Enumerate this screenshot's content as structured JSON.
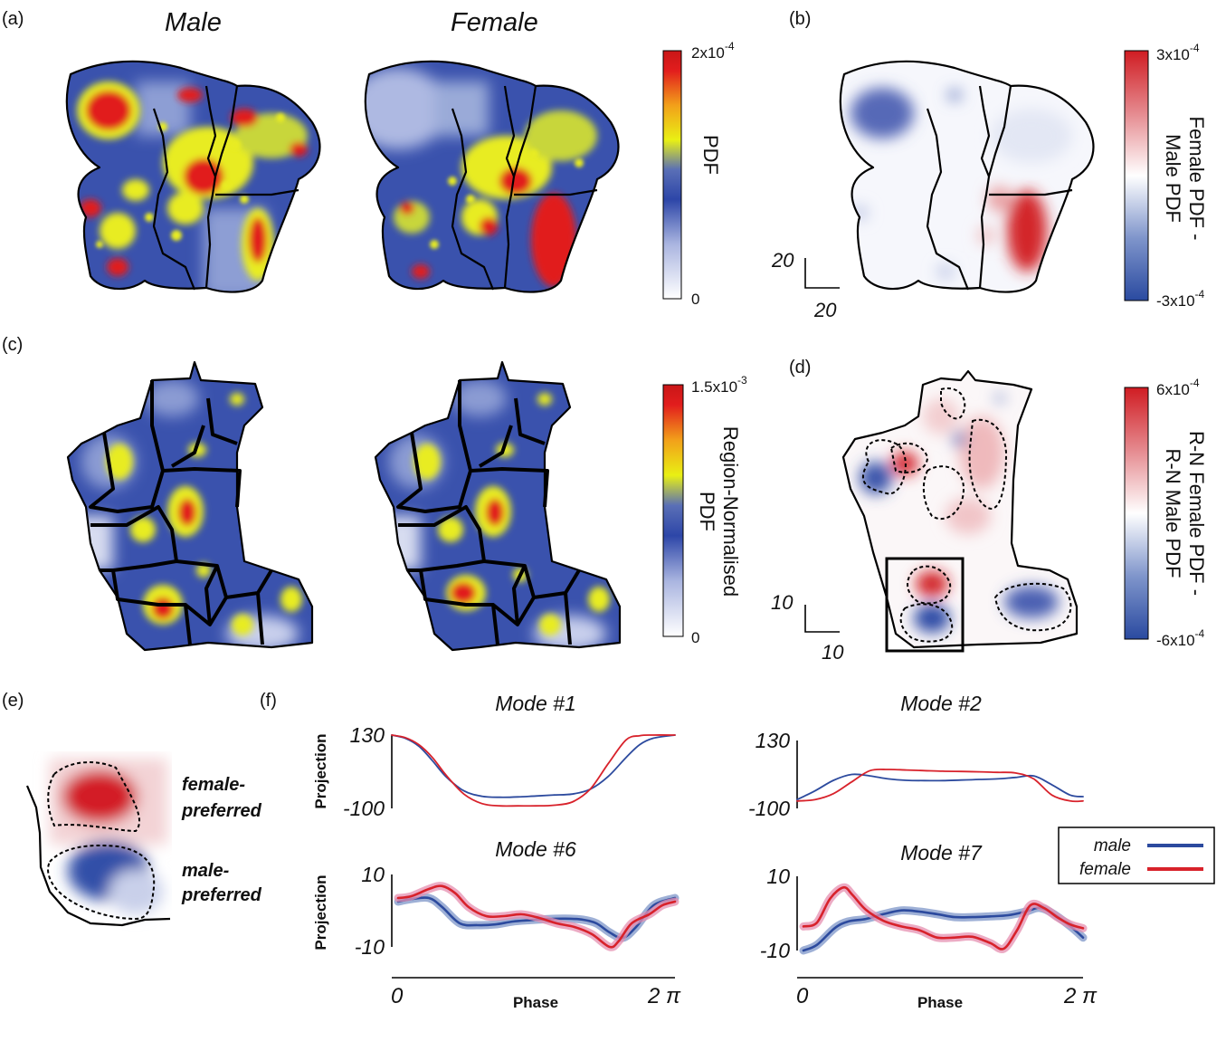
{
  "panels": {
    "a": {
      "label": "(a)",
      "title_left": "Male",
      "title_right": "Female",
      "colorbar": {
        "top": "2x10",
        "top_exp": "-4",
        "bottom": "0",
        "label": "PDF"
      }
    },
    "b": {
      "label": "(b)",
      "colorbar": {
        "top": "3x10",
        "top_exp": "-4",
        "bottom": "-3x10",
        "bottom_exp": "-4",
        "label_line1": "Female PDF -",
        "label_line2": "Male PDF"
      },
      "scale_v": "20",
      "scale_h": "20"
    },
    "c": {
      "label": "(c)",
      "colorbar": {
        "top": "1.5x10",
        "top_exp": "-3",
        "bottom": "0",
        "label_line1": "Region-Normalised",
        "label_line2": "PDF"
      }
    },
    "d": {
      "label": "(d)",
      "colorbar": {
        "top": "6x10",
        "top_exp": "-4",
        "bottom": "-6x10",
        "bottom_exp": "-4",
        "label_line1": "R-N Female PDF -",
        "label_line2": "R-N Male PDF"
      },
      "scale_v": "10",
      "scale_h": "10"
    },
    "e": {
      "label": "(e)",
      "female_line1": "female-",
      "female_line2": "preferred",
      "male_line1": "male-",
      "male_line2": "preferred"
    },
    "f": {
      "label": "(f)"
    }
  },
  "colors": {
    "male": "#2c4a9e",
    "female": "#d8222b",
    "female_band": "#e58fb0",
    "male_band": "#7d96c8"
  },
  "chart_data": [
    {
      "type": "line",
      "title": "Mode #1",
      "xlabel": "",
      "ylabel": "Projection",
      "ylim": [
        -100,
        130
      ],
      "yticks": [
        "130",
        "-100"
      ],
      "xlim": [
        0,
        6.2832
      ],
      "series": [
        {
          "name": "male",
          "x": [
            0,
            0.3,
            0.6,
            0.9,
            1.2,
            1.6,
            2.0,
            2.4,
            2.8,
            3.2,
            3.6,
            4.0,
            4.4,
            4.8,
            5.2,
            5.5,
            5.8,
            6.2832
          ],
          "y": [
            130,
            120,
            95,
            50,
            0,
            -45,
            -62,
            -65,
            -64,
            -61,
            -58,
            -55,
            -40,
            0,
            60,
            100,
            120,
            130
          ]
        },
        {
          "name": "female",
          "x": [
            0,
            0.3,
            0.6,
            0.9,
            1.2,
            1.6,
            2.0,
            2.4,
            2.8,
            3.2,
            3.6,
            4.0,
            4.4,
            4.8,
            5.2,
            5.5,
            5.8,
            6.2832
          ],
          "y": [
            130,
            122,
            100,
            60,
            5,
            -55,
            -85,
            -92,
            -92,
            -92,
            -90,
            -80,
            -40,
            40,
            115,
            128,
            130,
            130
          ]
        }
      ]
    },
    {
      "type": "line",
      "title": "Mode #2",
      "xlabel": "",
      "ylabel": "",
      "ylim": [
        -100,
        130
      ],
      "yticks": [
        "130",
        "-100"
      ],
      "xlim": [
        0,
        6.2832
      ],
      "series": [
        {
          "name": "male",
          "x": [
            0,
            0.4,
            0.8,
            1.2,
            1.6,
            2.0,
            2.4,
            2.8,
            3.2,
            3.6,
            4.0,
            4.4,
            4.8,
            5.2,
            5.6,
            6.0,
            6.2832
          ],
          "y": [
            -70,
            -40,
            -5,
            15,
            10,
            0,
            -5,
            -6,
            -6,
            -4,
            -2,
            0,
            5,
            10,
            -20,
            -55,
            -60
          ]
        },
        {
          "name": "female",
          "x": [
            0,
            0.4,
            0.8,
            1.2,
            1.6,
            2.0,
            2.4,
            2.8,
            3.2,
            3.6,
            4.0,
            4.4,
            4.8,
            5.2,
            5.6,
            6.0,
            6.2832
          ],
          "y": [
            -75,
            -70,
            -50,
            -10,
            28,
            32,
            30,
            28,
            26,
            25,
            24,
            22,
            20,
            0,
            -55,
            -75,
            -75
          ]
        }
      ]
    },
    {
      "type": "line",
      "title": "Mode #6",
      "xlabel": "Phase",
      "ylabel": "Projection",
      "ylim": [
        -10,
        10
      ],
      "yticks": [
        "10",
        "-10"
      ],
      "xlim": [
        0,
        6.2832
      ],
      "xticks": [
        "0",
        "2 π"
      ],
      "series": [
        {
          "name": "male",
          "x": [
            0,
            0.3,
            0.7,
            1.0,
            1.4,
            1.8,
            2.2,
            2.6,
            3.0,
            3.4,
            3.8,
            4.2,
            4.5,
            4.8,
            5.1,
            5.4,
            5.8,
            6.2832
          ],
          "y": [
            2.5,
            3.2,
            3.5,
            1.0,
            -3.5,
            -4.0,
            -3.8,
            -3.0,
            -2.6,
            -2.3,
            -2.2,
            -2.5,
            -3.5,
            -6.0,
            -7.5,
            -4.5,
            1.5,
            3.5
          ]
        },
        {
          "name": "female",
          "x": [
            0,
            0.3,
            0.7,
            1.0,
            1.3,
            1.6,
            2.0,
            2.4,
            2.8,
            3.2,
            3.6,
            4.0,
            4.4,
            4.8,
            5.0,
            5.3,
            5.7,
            6.0,
            6.2832
          ],
          "y": [
            3.5,
            4.0,
            6.0,
            6.8,
            4.8,
            1.0,
            -1.5,
            -1.5,
            -1.0,
            -2.0,
            -3.5,
            -4.5,
            -6.5,
            -10.0,
            -8.5,
            -3.5,
            -1.0,
            1.5,
            2.5
          ]
        }
      ]
    },
    {
      "type": "line",
      "title": "Mode #7",
      "xlabel": "Phase",
      "ylabel": "",
      "ylim": [
        -10,
        10
      ],
      "yticks": [
        "10",
        "-10"
      ],
      "xlim": [
        0,
        6.2832
      ],
      "xticks": [
        "0",
        "2 π"
      ],
      "series": [
        {
          "name": "male",
          "x": [
            0,
            0.3,
            0.7,
            1.0,
            1.4,
            1.8,
            2.2,
            2.6,
            3.0,
            3.4,
            3.8,
            4.2,
            4.6,
            5.0,
            5.3,
            5.6,
            6.0,
            6.2832
          ],
          "y": [
            -10,
            -8.5,
            -4.0,
            -2.2,
            -1.5,
            -0.2,
            0.8,
            0.5,
            -0.2,
            -1.0,
            -1.0,
            -0.8,
            -0.5,
            0.5,
            1.5,
            0.0,
            -3.5,
            -6.5
          ]
        },
        {
          "name": "female",
          "x": [
            0,
            0.3,
            0.6,
            0.9,
            1.1,
            1.4,
            1.8,
            2.2,
            2.6,
            3.0,
            3.4,
            3.8,
            4.2,
            4.5,
            4.8,
            5.1,
            5.4,
            5.7,
            6.0,
            6.2832
          ],
          "y": [
            -3.5,
            -2.5,
            4.0,
            7.0,
            5.0,
            1.0,
            -2.0,
            -3.5,
            -4.5,
            -6.5,
            -6.5,
            -6.3,
            -8.0,
            -9.5,
            -4.5,
            2.2,
            1.5,
            -1.0,
            -3.0,
            -4.0
          ]
        }
      ]
    }
  ],
  "legend": {
    "male": "male",
    "female": "female"
  }
}
